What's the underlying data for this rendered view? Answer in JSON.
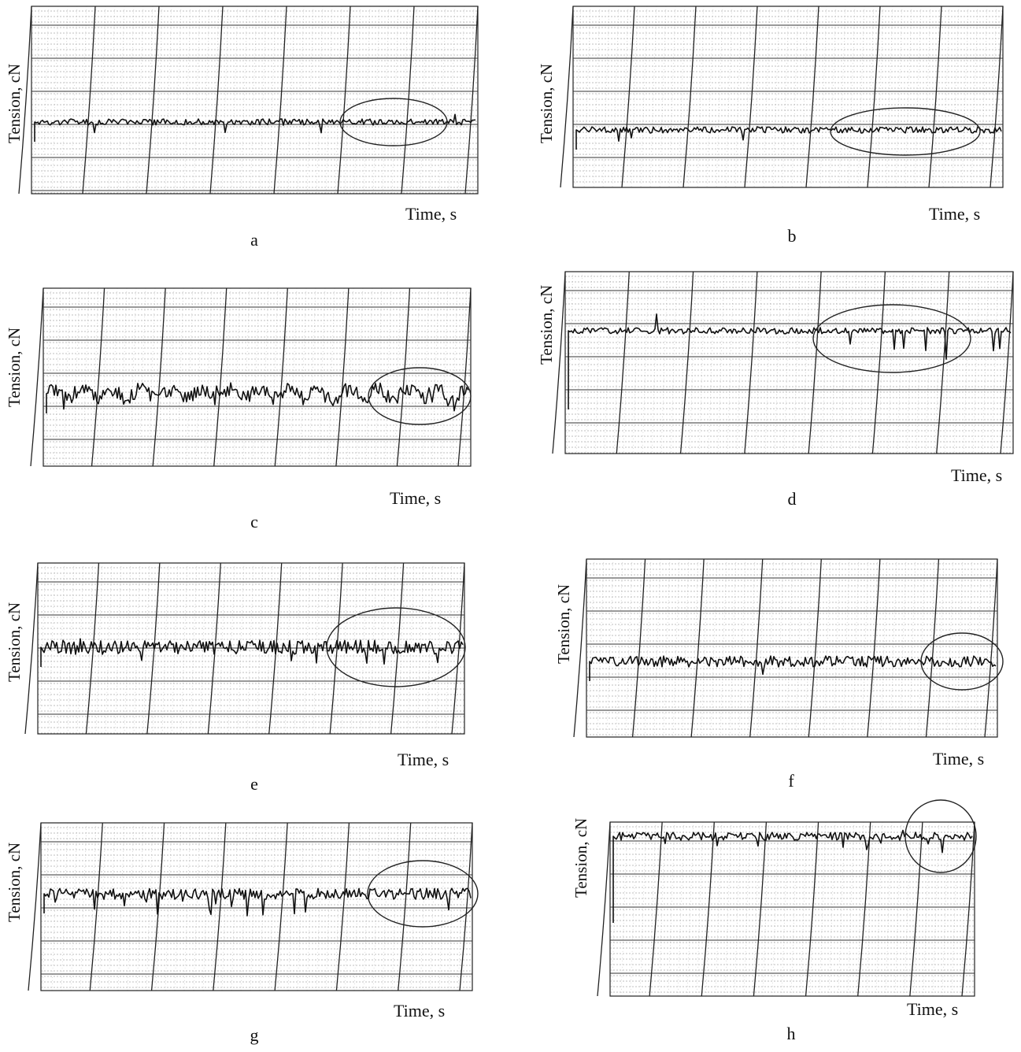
{
  "figure": {
    "panels": [
      {
        "id": "a",
        "caption": "a",
        "ylabel": "Tension, cN",
        "xlabel": "Time, s",
        "pattern": "low-noise",
        "spikes": "few"
      },
      {
        "id": "b",
        "caption": "b",
        "ylabel": "Tension, cN",
        "xlabel": "Time, s",
        "pattern": "low-noise",
        "spikes": "few"
      },
      {
        "id": "c",
        "caption": "c",
        "ylabel": "Tension, cN",
        "xlabel": "Time, s",
        "pattern": "periodic-oscillation",
        "spikes": "moderate"
      },
      {
        "id": "d",
        "caption": "d",
        "ylabel": "Tension, cN",
        "xlabel": "Time, s",
        "pattern": "low-noise",
        "spikes": "large-downward"
      },
      {
        "id": "e",
        "caption": "e",
        "ylabel": "Tension, cN",
        "xlabel": "Time, s",
        "pattern": "high-noise",
        "spikes": "many"
      },
      {
        "id": "f",
        "caption": "f",
        "ylabel": "Tension, cN",
        "xlabel": "Time, s",
        "pattern": "medium-noise",
        "spikes": "moderate"
      },
      {
        "id": "g",
        "caption": "g",
        "ylabel": "Tension, cN",
        "xlabel": "Time, s",
        "pattern": "medium-noise",
        "spikes": "many-downward"
      },
      {
        "id": "h",
        "caption": "h",
        "ylabel": "Tension, cN",
        "xlabel": "Time, s",
        "pattern": "high-frequency-noise",
        "spikes": "few"
      }
    ]
  },
  "chart_data": [
    {
      "panel": "a",
      "type": "line",
      "xlabel": "Time, s",
      "ylabel": "Tension, cN",
      "series": [
        {
          "values": []
        }
      ],
      "highlight": "ellipse-right",
      "grid": true
    },
    {
      "panel": "b",
      "type": "line",
      "xlabel": "Time, s",
      "ylabel": "Tension, cN",
      "series": [
        {
          "values": []
        }
      ],
      "highlight": "ellipse-right",
      "grid": true
    },
    {
      "panel": "c",
      "type": "line",
      "xlabel": "Time, s",
      "ylabel": "Tension, cN",
      "series": [
        {
          "values": []
        }
      ],
      "highlight": "ellipse-right",
      "grid": true
    },
    {
      "panel": "d",
      "type": "line",
      "xlabel": "Time, s",
      "ylabel": "Tension, cN",
      "series": [
        {
          "values": []
        }
      ],
      "highlight": "ellipse-right",
      "grid": true
    },
    {
      "panel": "e",
      "type": "line",
      "xlabel": "Time, s",
      "ylabel": "Tension, cN",
      "series": [
        {
          "values": []
        }
      ],
      "highlight": "ellipse-right",
      "grid": true
    },
    {
      "panel": "f",
      "type": "line",
      "xlabel": "Time, s",
      "ylabel": "Tension, cN",
      "series": [
        {
          "values": []
        }
      ],
      "highlight": "ellipse-right",
      "grid": true
    },
    {
      "panel": "g",
      "type": "line",
      "xlabel": "Time, s",
      "ylabel": "Tension, cN",
      "series": [
        {
          "values": []
        }
      ],
      "highlight": "ellipse-right",
      "grid": true
    },
    {
      "panel": "h",
      "type": "line",
      "xlabel": "Time, s",
      "ylabel": "Tension, cN",
      "series": [
        {
          "values": []
        }
      ],
      "highlight": "ellipse-right",
      "grid": true
    }
  ],
  "colors": {
    "ink": "#111111",
    "grid": "#555555",
    "paper": "#ffffff"
  }
}
